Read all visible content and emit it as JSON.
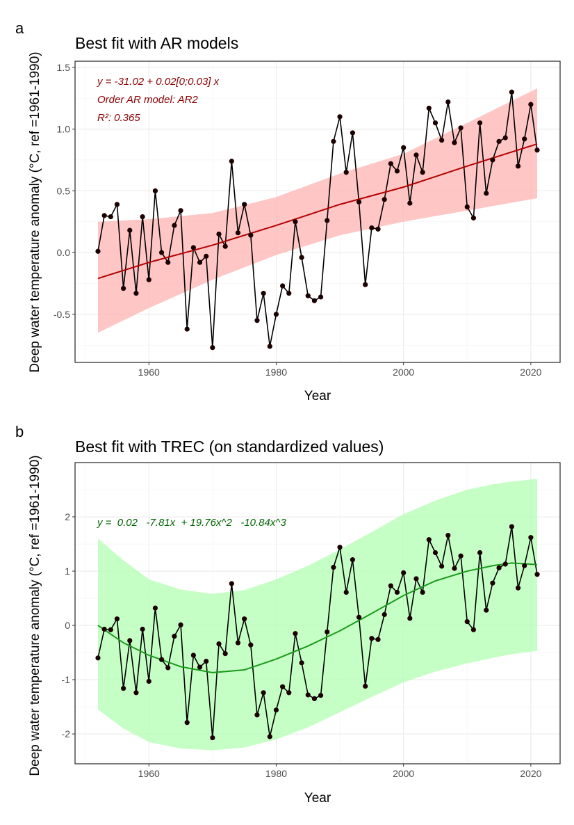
{
  "chart_data": [
    {
      "panel_label": "a",
      "type": "line",
      "title": "Best fit with AR models",
      "xlabel": "Year",
      "ylabel": "Deep water temperature anomaly (°C, ref =1961-1990)",
      "xlim": [
        1948.4,
        2024.6
      ],
      "ylim": [
        -0.89,
        1.55
      ],
      "xticks": [
        1960,
        1980,
        2000,
        2020
      ],
      "yticks": [
        -0.5,
        0.0,
        0.5,
        1.0,
        1.5
      ],
      "ytick_labels": [
        "-0.5",
        "0.0",
        "0.5",
        "1.0",
        "1.5"
      ],
      "grid": true,
      "x_start": 1952,
      "values": [
        0.01,
        0.3,
        0.29,
        0.39,
        -0.29,
        0.18,
        -0.33,
        0.29,
        -0.22,
        0.5,
        0.0,
        -0.08,
        0.22,
        0.34,
        -0.62,
        0.04,
        -0.08,
        -0.03,
        -0.77,
        0.15,
        0.05,
        0.74,
        0.16,
        0.39,
        0.14,
        -0.55,
        -0.33,
        -0.76,
        -0.5,
        -0.27,
        -0.33,
        0.25,
        -0.04,
        -0.35,
        -0.39,
        -0.36,
        0.26,
        0.9,
        1.1,
        0.65,
        0.97,
        0.41,
        -0.26,
        0.2,
        0.19,
        0.43,
        0.72,
        0.66,
        0.85,
        0.4,
        0.79,
        0.65,
        1.17,
        1.05,
        0.91,
        1.22,
        0.89,
        1.01,
        0.37,
        0.28,
        1.05,
        0.48,
        0.75,
        0.9,
        0.93,
        1.3,
        0.7,
        0.92,
        1.2,
        0.83
      ],
      "fit": {
        "x": [
          1952,
          1960,
          1970,
          1980,
          1990,
          2000,
          2010,
          2021
        ],
        "y": [
          -0.21,
          -0.08,
          0.06,
          0.22,
          0.39,
          0.53,
          0.7,
          0.88
        ],
        "lower": [
          -0.65,
          -0.45,
          -0.22,
          -0.02,
          0.14,
          0.25,
          0.34,
          0.44
        ],
        "upper": [
          0.25,
          0.27,
          0.32,
          0.45,
          0.64,
          0.8,
          1.05,
          1.33
        ],
        "line_color": "#b30000",
        "band_color": "#ffb3b3"
      },
      "annotations": [
        "y = -31.02 + 0.02[0;0.03] x",
        "Order AR model: AR2",
        "R²: 0.365"
      ],
      "annotation_color": "#8b0000"
    },
    {
      "panel_label": "b",
      "type": "line",
      "title": "Best fit with TREC (on standardized values)",
      "xlabel": "Year",
      "ylabel": "Deep water temperature anomaly (°C, ref =1961-1990)",
      "xlim": [
        1948.4,
        2024.6
      ],
      "ylim": [
        -2.55,
        3.0
      ],
      "xticks": [
        1960,
        1980,
        2000,
        2020
      ],
      "yticks": [
        -2,
        -1,
        0,
        1,
        2
      ],
      "ytick_labels": [
        "-2",
        "-1",
        "0",
        "1",
        "2"
      ],
      "grid": true,
      "x_start": 1952,
      "values": [
        -0.6,
        -0.07,
        -0.08,
        0.12,
        -1.16,
        -0.28,
        -1.24,
        -0.07,
        -1.03,
        0.32,
        -0.63,
        -0.78,
        -0.2,
        0.01,
        -1.79,
        -0.55,
        -0.77,
        -0.66,
        -2.07,
        -0.34,
        -0.52,
        0.77,
        -0.32,
        0.12,
        -0.36,
        -1.65,
        -1.24,
        -2.05,
        -1.56,
        -1.13,
        -1.24,
        -0.15,
        -0.69,
        -1.28,
        -1.35,
        -1.29,
        -0.12,
        1.07,
        1.44,
        0.61,
        1.21,
        0.15,
        -1.12,
        -0.24,
        -0.26,
        0.2,
        0.73,
        0.61,
        0.97,
        0.13,
        0.86,
        0.61,
        1.58,
        1.34,
        1.09,
        1.66,
        1.05,
        1.28,
        0.07,
        -0.08,
        1.34,
        0.28,
        0.78,
        1.06,
        1.13,
        1.82,
        0.69,
        1.1,
        1.62,
        0.94
      ],
      "fit": {
        "x": [
          1952,
          1956,
          1960,
          1965,
          1970,
          1975,
          1980,
          1985,
          1990,
          1995,
          2000,
          2005,
          2010,
          2014,
          2017,
          2021
        ],
        "y": [
          0.0,
          -0.32,
          -0.55,
          -0.76,
          -0.87,
          -0.82,
          -0.62,
          -0.38,
          -0.1,
          0.22,
          0.55,
          0.82,
          1.0,
          1.1,
          1.15,
          1.12
        ],
        "lower": [
          -1.55,
          -1.9,
          -2.15,
          -2.27,
          -2.3,
          -2.25,
          -2.1,
          -1.88,
          -1.6,
          -1.32,
          -1.05,
          -0.85,
          -0.7,
          -0.6,
          -0.53,
          -0.47
        ],
        "upper": [
          1.6,
          1.2,
          0.85,
          0.66,
          0.58,
          0.65,
          0.85,
          1.1,
          1.4,
          1.72,
          2.05,
          2.3,
          2.5,
          2.6,
          2.65,
          2.7
        ],
        "line_color": "#1a9a1a",
        "band_color": "#b3ffb3"
      },
      "annotations": [
        "y =  0.02   -7.81x  + 19.76x^2   -10.84x^3"
      ],
      "annotation_color": "#006400"
    }
  ]
}
